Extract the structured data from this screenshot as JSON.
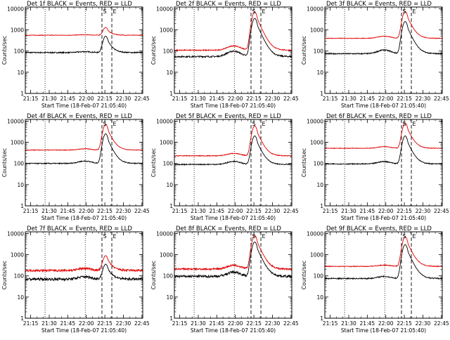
{
  "figure": {
    "background": "#ffffff",
    "colors": {
      "events": "#000000",
      "lld": "#e00000",
      "axes": "#000000"
    }
  },
  "chart_data": [
    {
      "type": "line",
      "title": "Det 1f BLACK = Events, RED = LLD",
      "xlabel": "Start Time (18-Feb-07 21:05:40)",
      "ylabel": "Counts/sec",
      "xticks": [
        "21:15",
        "21:30",
        "21:45",
        "22:00",
        "22:15",
        "22:30",
        "22:45"
      ],
      "yticks": [
        "1",
        "10",
        "100",
        "1000",
        "10000"
      ],
      "xlim_minutes": [
        5,
        100
      ],
      "ylim": [
        1,
        12000
      ],
      "yscale": "log",
      "markers": [
        "S",
        "E"
      ],
      "vlines_dotted": [
        21.0,
        53.5
      ],
      "vlines_dashed": [
        67.0,
        75.0
      ],
      "series": [
        {
          "name": "Events",
          "color": "#000000",
          "baseline": 85,
          "bump": 1.1,
          "peak": 500,
          "noise": 0.06
        },
        {
          "name": "LLD",
          "color": "#e00000",
          "baseline": 560,
          "bump": 1.05,
          "peak": 1300,
          "noise": 0.03
        }
      ]
    },
    {
      "type": "line",
      "title": "Det 2f BLACK = Events, RED = LLD",
      "xlabel": "Start Time (18-Feb-07 21:05:40)",
      "ylabel": "Counts/sec",
      "xticks": [
        "21:15",
        "21:30",
        "21:45",
        "22:00",
        "22:15",
        "22:30",
        "22:45"
      ],
      "yticks": [
        "1",
        "10",
        "100",
        "1000",
        "10000"
      ],
      "xlim_minutes": [
        5,
        100
      ],
      "ylim": [
        1,
        12000
      ],
      "yscale": "log",
      "markers": [
        "S",
        "E"
      ],
      "vlines_dotted": [
        21.0,
        53.5
      ],
      "vlines_dashed": [
        67.0,
        75.0
      ],
      "series": [
        {
          "name": "Events",
          "color": "#000000",
          "baseline": 55,
          "bump": 1.8,
          "peak": 3500,
          "noise": 0.08
        },
        {
          "name": "LLD",
          "color": "#e00000",
          "baseline": 110,
          "bump": 1.6,
          "peak": 7000,
          "noise": 0.05
        }
      ]
    },
    {
      "type": "line",
      "title": "Det 3f BLACK = Events, RED = LLD",
      "xlabel": "Start Time (18-Feb-07 21:05:40)",
      "ylabel": "Counts/sec",
      "xticks": [
        "21:15",
        "21:30",
        "21:45",
        "22:00",
        "22:15",
        "22:30",
        "22:45"
      ],
      "yticks": [
        "1",
        "10",
        "100",
        "1000",
        "10000"
      ],
      "xlim_minutes": [
        5,
        100
      ],
      "ylim": [
        1,
        12000
      ],
      "yscale": "log",
      "markers": [
        "S",
        "E"
      ],
      "vlines_dotted": [
        21.0,
        53.5
      ],
      "vlines_dashed": [
        67.0,
        75.0
      ],
      "series": [
        {
          "name": "Events",
          "color": "#000000",
          "baseline": 75,
          "bump": 1.5,
          "peak": 2500,
          "noise": 0.06
        },
        {
          "name": "LLD",
          "color": "#e00000",
          "baseline": 400,
          "bump": 1.25,
          "peak": 7500,
          "noise": 0.03
        }
      ]
    },
    {
      "type": "line",
      "title": "Det 4f BLACK = Events, RED = LLD",
      "xlabel": "Start Time (18-Feb-07 21:05:40)",
      "ylabel": "Counts/sec",
      "xticks": [
        "21:15",
        "21:30",
        "21:45",
        "22:00",
        "22:15",
        "22:30",
        "22:45"
      ],
      "yticks": [
        "1",
        "10",
        "100",
        "1000",
        "10000"
      ],
      "xlim_minutes": [
        5,
        100
      ],
      "ylim": [
        1,
        12000
      ],
      "yscale": "log",
      "markers": [
        "S",
        "E"
      ],
      "vlines_dotted": [
        21.0,
        53.5
      ],
      "vlines_dashed": [
        67.0,
        75.0
      ],
      "series": [
        {
          "name": "Events",
          "color": "#000000",
          "baseline": 100,
          "bump": 1.3,
          "peak": 2500,
          "noise": 0.05
        },
        {
          "name": "LLD",
          "color": "#e00000",
          "baseline": 430,
          "bump": 1.15,
          "peak": 7000,
          "noise": 0.03
        }
      ]
    },
    {
      "type": "line",
      "title": "Det 5f BLACK = Events, RED = LLD",
      "xlabel": "Start Time (18-Feb-07 21:05:40)",
      "ylabel": "Counts/sec",
      "xticks": [
        "21:15",
        "21:30",
        "21:45",
        "22:00",
        "22:15",
        "22:30",
        "22:45"
      ],
      "yticks": [
        "1",
        "10",
        "100",
        "1000",
        "10000"
      ],
      "xlim_minutes": [
        5,
        100
      ],
      "ylim": [
        1,
        12000
      ],
      "yscale": "log",
      "markers": [
        "S",
        "E"
      ],
      "vlines_dotted": [
        21.0,
        53.5
      ],
      "vlines_dashed": [
        67.0,
        75.0
      ],
      "series": [
        {
          "name": "Events",
          "color": "#000000",
          "baseline": 90,
          "bump": 1.4,
          "peak": 2000,
          "noise": 0.05
        },
        {
          "name": "LLD",
          "color": "#e00000",
          "baseline": 230,
          "bump": 1.3,
          "peak": 6000,
          "noise": 0.04
        }
      ]
    },
    {
      "type": "line",
      "title": "Det 6f BLACK = Events, RED = LLD",
      "xlabel": "Start Time (18-Feb-07 21:05:40)",
      "ylabel": "Counts/sec",
      "xticks": [
        "21:15",
        "21:30",
        "21:45",
        "22:00",
        "22:15",
        "22:30",
        "22:45"
      ],
      "yticks": [
        "1",
        "10",
        "100",
        "1000",
        "10000"
      ],
      "xlim_minutes": [
        5,
        100
      ],
      "ylim": [
        1,
        12000
      ],
      "yscale": "log",
      "markers": [
        "S",
        "E"
      ],
      "vlines_dotted": [
        21.0,
        53.5
      ],
      "vlines_dashed": [
        67.0,
        75.0
      ],
      "series": [
        {
          "name": "Events",
          "color": "#000000",
          "baseline": 95,
          "bump": 1.3,
          "peak": 2000,
          "noise": 0.05
        },
        {
          "name": "LLD",
          "color": "#e00000",
          "baseline": 520,
          "bump": 1.2,
          "peak": 8000,
          "noise": 0.03
        }
      ]
    },
    {
      "type": "line",
      "title": "Det 7f BLACK = Events, RED = LLD",
      "xlabel": "Start Time (18-Feb-07 21:05:40)",
      "ylabel": "Counts/sec",
      "xticks": [
        "21:15",
        "21:30",
        "21:45",
        "22:00",
        "22:15",
        "22:30",
        "22:45"
      ],
      "yticks": [
        "1",
        "10",
        "100",
        "1000",
        "10000"
      ],
      "xlim_minutes": [
        5,
        100
      ],
      "ylim": [
        1,
        12000
      ],
      "yscale": "log",
      "markers": [
        "S",
        "E"
      ],
      "vlines_dotted": [
        21.0,
        53.5
      ],
      "vlines_dashed": [
        67.0,
        75.0
      ],
      "series": [
        {
          "name": "Events",
          "color": "#000000",
          "baseline": 70,
          "bump": 1.3,
          "peak": 350,
          "noise": 0.14
        },
        {
          "name": "LLD",
          "color": "#e00000",
          "baseline": 180,
          "bump": 1.25,
          "peak": 900,
          "noise": 0.12
        }
      ]
    },
    {
      "type": "line",
      "title": "Det 8f BLACK = Events, RED = LLD",
      "xlabel": "Start Time (18-Feb-07 21:05:40)",
      "ylabel": "Counts/sec",
      "xticks": [
        "21:15",
        "21:30",
        "21:45",
        "22:00",
        "22:15",
        "22:30",
        "22:45"
      ],
      "yticks": [
        "1",
        "10",
        "100",
        "1000",
        "10000"
      ],
      "xlim_minutes": [
        5,
        100
      ],
      "ylim": [
        1,
        12000
      ],
      "yscale": "log",
      "markers": [
        "S",
        "E"
      ],
      "vlines_dotted": [
        21.0,
        53.5
      ],
      "vlines_dashed": [
        67.0,
        75.0
      ],
      "series": [
        {
          "name": "Events",
          "color": "#000000",
          "baseline": 95,
          "bump": 1.6,
          "peak": 4000,
          "noise": 0.13
        },
        {
          "name": "LLD",
          "color": "#e00000",
          "baseline": 210,
          "bump": 1.5,
          "peak": 8000,
          "noise": 0.1
        }
      ]
    },
    {
      "type": "line",
      "title": "Det 9f BLACK = Events, RED = LLD",
      "xlabel": "Start Time (18-Feb-07 21:05:40)",
      "ylabel": "Counts/sec",
      "xticks": [
        "21:15",
        "21:30",
        "21:45",
        "22:00",
        "22:15",
        "22:30",
        "22:45"
      ],
      "yticks": [
        "1",
        "10",
        "100",
        "1000",
        "10000"
      ],
      "xlim_minutes": [
        5,
        100
      ],
      "ylim": [
        1,
        12000
      ],
      "yscale": "log",
      "markers": [
        "S",
        "E"
      ],
      "vlines_dotted": [
        21.0,
        53.5
      ],
      "vlines_dashed": [
        67.0,
        75.0
      ],
      "series": [
        {
          "name": "Events",
          "color": "#000000",
          "baseline": 75,
          "bump": 1.25,
          "peak": 3000,
          "noise": 0.06
        },
        {
          "name": "LLD",
          "color": "#e00000",
          "baseline": 280,
          "bump": 1.15,
          "peak": 7000,
          "noise": 0.04
        }
      ]
    }
  ]
}
